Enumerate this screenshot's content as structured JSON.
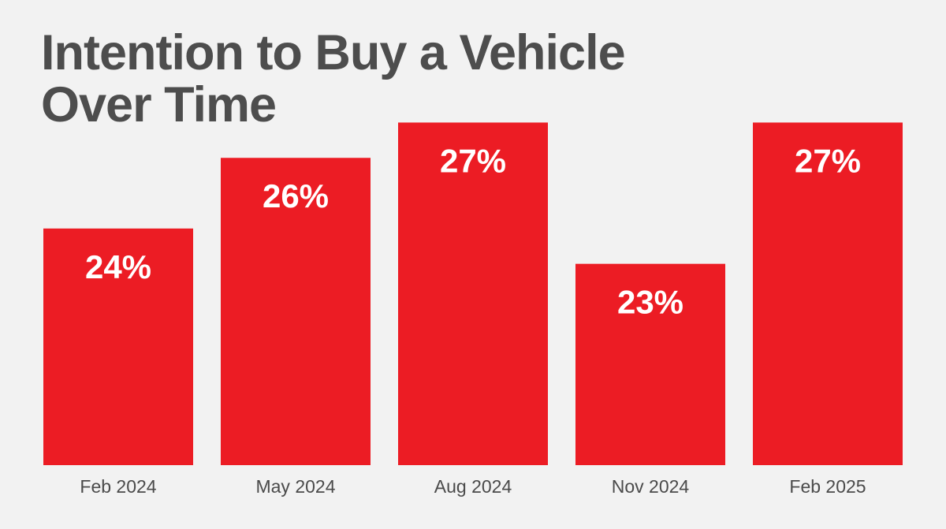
{
  "title_lines": [
    "Intention to Buy a Vehicle",
    "Over Time"
  ],
  "colors": {
    "background": "#f2f2f2",
    "bar": "#ec1c24",
    "title": "#4d4d4d",
    "bar_label": "#ffffff",
    "axis_label": "#4a4a4a"
  },
  "chart_data": {
    "type": "bar",
    "title": "Intention to Buy a Vehicle Over Time",
    "xlabel": "",
    "ylabel": "",
    "categories": [
      "Feb 2024",
      "May 2024",
      "Aug 2024",
      "Nov 2024",
      "Feb 2025"
    ],
    "values": [
      24,
      26,
      27,
      23,
      27
    ],
    "value_labels": [
      "24%",
      "26%",
      "27%",
      "23%",
      "27%"
    ],
    "unit": "%",
    "grid": false,
    "legend": "none"
  }
}
